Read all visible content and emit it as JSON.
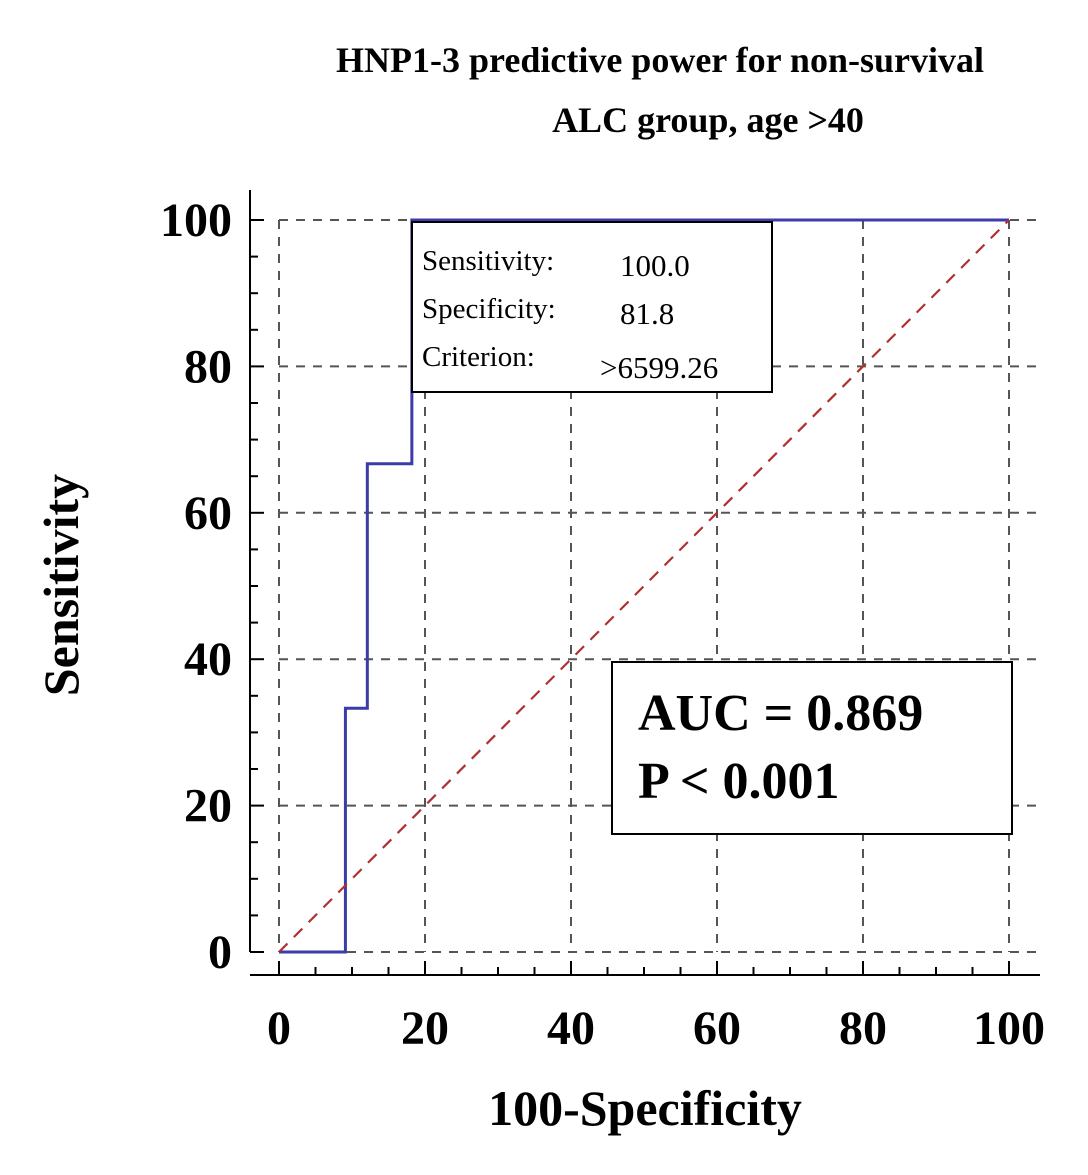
{
  "chart_data": {
    "type": "line",
    "title": "HNP1-3 predictive power for non-survival",
    "subtitle": "ALC group, age >40",
    "xlabel": "100-Specificity",
    "ylabel": "Sensitivity",
    "xlim": [
      0,
      100
    ],
    "ylim": [
      0,
      100
    ],
    "xticks": [
      "0",
      "20",
      "40",
      "60",
      "80",
      "100"
    ],
    "yticks": [
      "0",
      "20",
      "40",
      "60",
      "80",
      "100"
    ],
    "grid": true,
    "series": [
      {
        "name": "ROC curve",
        "color": "#3c3ca8",
        "x": [
          0,
          9.1,
          9.1,
          12.1,
          12.1,
          18.2,
          18.2,
          100
        ],
        "y": [
          0,
          0,
          33.3,
          33.3,
          66.7,
          66.7,
          100,
          100
        ]
      },
      {
        "name": "Reference line",
        "color": "#b03030",
        "x": [
          0,
          100
        ],
        "y": [
          0,
          100
        ]
      }
    ],
    "optimal_point": {
      "x": 18.2,
      "y": 100,
      "labels": [
        "Sensitivity:",
        "Specificity:",
        "Criterion:"
      ],
      "values": [
        "100.0",
        "81.8",
        ">6599.26"
      ]
    },
    "annotations": {
      "auc": "AUC = 0.869",
      "p": "P < 0.001"
    }
  }
}
